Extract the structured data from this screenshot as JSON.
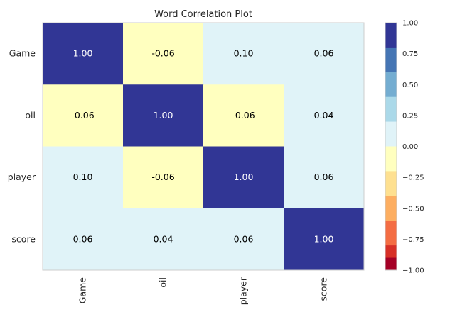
{
  "chart_data": {
    "type": "heatmap",
    "title": "Word Correlation Plot",
    "labels": [
      "Game",
      "oil",
      "player",
      "score"
    ],
    "matrix": [
      [
        1.0,
        -0.06,
        0.1,
        0.06
      ],
      [
        -0.06,
        1.0,
        -0.06,
        0.04
      ],
      [
        0.1,
        -0.06,
        1.0,
        0.06
      ],
      [
        0.06,
        0.04,
        0.06,
        1.0
      ]
    ],
    "cell_text": [
      [
        "1.00",
        "-0.06",
        "0.10",
        "0.06"
      ],
      [
        "-0.06",
        "1.00",
        "-0.06",
        "0.04"
      ],
      [
        "0.10",
        "-0.06",
        "1.00",
        "0.06"
      ],
      [
        "0.06",
        "0.04",
        "0.06",
        "1.00"
      ]
    ],
    "vmin": -1.0,
    "vmax": 1.0,
    "colormap": "RdYlBu (discrete, 10 bins)",
    "colorbar": {
      "ticks": [
        1.0,
        0.75,
        0.5,
        0.25,
        0.0,
        -0.25,
        -0.5,
        -0.75,
        -1.0
      ],
      "tick_labels": [
        "1.00",
        "0.75",
        "0.50",
        "0.25",
        "0.00",
        "−0.25",
        "−0.50",
        "−0.75",
        "−1.00"
      ],
      "bins": [
        {
          "lo": 0.8,
          "hi": 1.0,
          "color": "#313695"
        },
        {
          "lo": 0.6,
          "hi": 0.8,
          "color": "#4575b4"
        },
        {
          "lo": 0.4,
          "hi": 0.6,
          "color": "#74add1"
        },
        {
          "lo": 0.2,
          "hi": 0.4,
          "color": "#abd9e9"
        },
        {
          "lo": 0.0,
          "hi": 0.2,
          "color": "#e0f3f8"
        },
        {
          "lo": -0.2,
          "hi": 0.0,
          "color": "#ffffbf"
        },
        {
          "lo": -0.4,
          "hi": -0.2,
          "color": "#fee090"
        },
        {
          "lo": -0.6,
          "hi": -0.4,
          "color": "#fdae61"
        },
        {
          "lo": -0.8,
          "hi": -0.6,
          "color": "#f46d43"
        },
        {
          "lo": -1.0,
          "hi": -0.8,
          "color": "#d73027"
        }
      ],
      "bottom_color": "#a50026"
    },
    "text_colors": {
      "dark_cell": "#ffffff",
      "light_cell": "#000000"
    },
    "grid": false,
    "legend": "colorbar-right"
  }
}
